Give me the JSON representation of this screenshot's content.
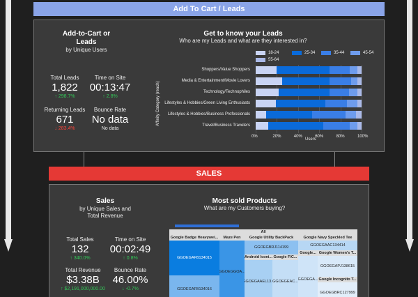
{
  "banners": {
    "cart": "Add To Cart / Leads",
    "sales": "SALES"
  },
  "cart_panel": {
    "title_line1": "Add-to-Cart or",
    "title_line2": "Leads",
    "subtitle": "by Unique Users",
    "metrics": {
      "total_leads": {
        "label": "Total Leads",
        "value": "1,822",
        "delta": "↑ 298.7%"
      },
      "time_on_site": {
        "label": "Time on Site",
        "value": "00:13:47",
        "delta": "↑ 2.8%"
      },
      "returning_leads": {
        "label": "Returning Leads",
        "value": "671",
        "delta": "↓ 283.4%"
      },
      "bounce_rate": {
        "label": "Bounce Rate",
        "value": "No data",
        "sub": "No data"
      }
    }
  },
  "leads_chart": {
    "title": "Get to know your Leads",
    "subtitle": "Who are my Leads and what are they interested in?"
  },
  "chart_data": {
    "type": "bar",
    "orientation": "horizontal",
    "stacked": "percent",
    "categories": [
      "Shoppers/Value Shoppers",
      "Media & Entertainment/Movie Lovers",
      "Technology/Technophiles",
      "Lifestyles & Hobbies/Green Living Enthusiasts",
      "Lifestyles & Hobbies/Business Professionals",
      "Travel/Business Travelers"
    ],
    "series": [
      {
        "name": "18-24",
        "color": "#c9d4f4",
        "values": [
          20,
          25,
          22,
          19,
          10,
          12
        ]
      },
      {
        "name": "25-34",
        "color": "#0a6ad9",
        "values": [
          50,
          45,
          48,
          47,
          43,
          52
        ]
      },
      {
        "name": "35-44",
        "color": "#3a7ee6",
        "values": [
          19,
          20,
          18,
          20,
          32,
          25
        ]
      },
      {
        "name": "45-54",
        "color": "#6e9ced",
        "values": [
          7,
          6,
          8,
          10,
          10,
          7
        ]
      },
      {
        "name": "55-64",
        "color": "#aab9e8",
        "values": [
          4,
          4,
          4,
          4,
          5,
          4
        ]
      }
    ],
    "x_ticks": [
      "0%",
      "20%",
      "40%",
      "60%",
      "80%",
      "100%"
    ],
    "xlabel": "Users",
    "ylabel": "Affinity Category (reach)",
    "xlim": [
      0,
      100
    ],
    "legend": "top"
  },
  "sales_panel": {
    "title": "Sales",
    "subtitle_line1": "by Unique Sales and",
    "subtitle_line2": "Total Revenue",
    "metrics": {
      "total_sales": {
        "label": "Total Sales",
        "value": "132",
        "delta": "↑ 340.0%"
      },
      "time_on_site": {
        "label": "Time on Site",
        "value": "00:02:49",
        "delta": "↑ 0.8%"
      },
      "total_revenue": {
        "label": "Total Revenue",
        "value": "$3.38B",
        "delta": "↑ $2,191,000,000.00"
      },
      "bounce_rate": {
        "label": "Bounce Rate",
        "value": "46.00%",
        "delta": "↓ -0.7%"
      }
    }
  },
  "products": {
    "title": "Most sold Products",
    "subtitle": "What are my Customers buying?",
    "treemap": {
      "all_label": "All",
      "groups": [
        {
          "name": "Google Badge Heavywei...",
          "items": [
            "GGOEGAFB134015",
            "GGOEGAFB134016"
          ]
        },
        {
          "name": "Maze Pen",
          "items": [
            "GGOEGGOA..."
          ]
        },
        {
          "name": "Google Utility BackPack",
          "items": [
            "GGOEGBRJ114199"
          ]
        },
        {
          "name": "Android Iconi...",
          "items": [
            "GGOEGAAEL13..."
          ]
        },
        {
          "name": "Google F/C...",
          "items": [
            "GGOEGEAC..."
          ]
        },
        {
          "name": "Google Navy Speckled Tee",
          "items": [
            "GGOEGAAC134414"
          ]
        },
        {
          "name": "Google...",
          "items": [
            "GGOEGA..."
          ]
        },
        {
          "name": "Google Women's T...",
          "items": [
            "GGOEGAPJ138615"
          ]
        },
        {
          "name": "Google Incognito T...",
          "items": [
            "GGOEGBRC127999"
          ]
        }
      ]
    }
  }
}
